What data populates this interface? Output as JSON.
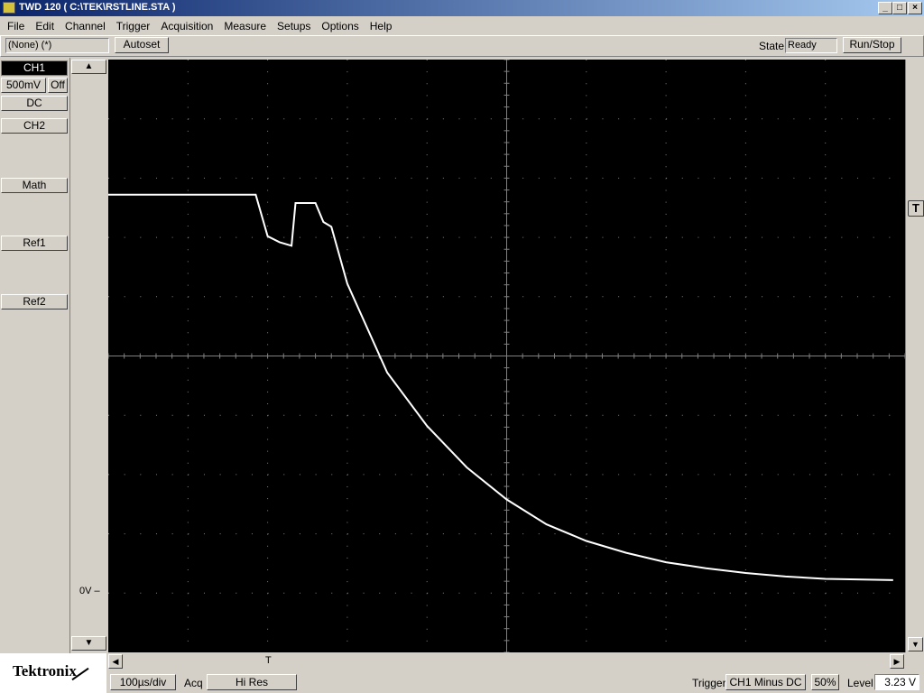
{
  "window": {
    "title": "TWD 120 ( C:\\TEK\\RSTLINE.STA )"
  },
  "menu": [
    "File",
    "Edit",
    "Channel",
    "Trigger",
    "Acquisition",
    "Measure",
    "Setups",
    "Options",
    "Help"
  ],
  "toolbar": {
    "setup_field": "(None) (*)",
    "autoset_label": "Autoset",
    "state_label": "State",
    "state_value": "Ready",
    "runstop_label": "Run/Stop"
  },
  "channels": {
    "ch1_label": "CH1",
    "ch1_scale": "500mV",
    "ch1_offset": "Off",
    "ch1_coupling": "DC",
    "ch2_label": "CH2",
    "math_label": "Math",
    "ref1_label": "Ref1",
    "ref2_label": "Ref2"
  },
  "plot": {
    "ground_marker": "0V",
    "trigger_marker": "T",
    "trigger_position_marker": "T"
  },
  "statusbar": {
    "timebase": "100µs/div",
    "acq_label": "Acq",
    "acq_mode": "Hi Res",
    "trigger_label": "Trigger",
    "trigger_source": "CH1 Minus DC",
    "trigger_percent": "50%",
    "level_label": "Level",
    "level_value": "3.23 V"
  },
  "brand": {
    "logo_text": "Tektronix"
  },
  "waveform": {
    "volts_per_div": 0.5,
    "time_per_div_us": 100,
    "points": [
      [
        0,
        3.35
      ],
      [
        1.85,
        3.35
      ],
      [
        2.0,
        3.0
      ],
      [
        2.15,
        2.95
      ],
      [
        2.3,
        2.92
      ],
      [
        2.35,
        3.28
      ],
      [
        2.6,
        3.28
      ],
      [
        2.7,
        3.12
      ],
      [
        2.8,
        3.08
      ],
      [
        3.0,
        2.6
      ],
      [
        3.5,
        1.85
      ],
      [
        4.0,
        1.4
      ],
      [
        4.5,
        1.05
      ],
      [
        5.0,
        0.78
      ],
      [
        5.5,
        0.57
      ],
      [
        6.0,
        0.43
      ],
      [
        6.5,
        0.33
      ],
      [
        7.0,
        0.25
      ],
      [
        7.5,
        0.2
      ],
      [
        8.0,
        0.16
      ],
      [
        8.5,
        0.13
      ],
      [
        9.0,
        0.11
      ],
      [
        9.85,
        0.1
      ]
    ]
  }
}
